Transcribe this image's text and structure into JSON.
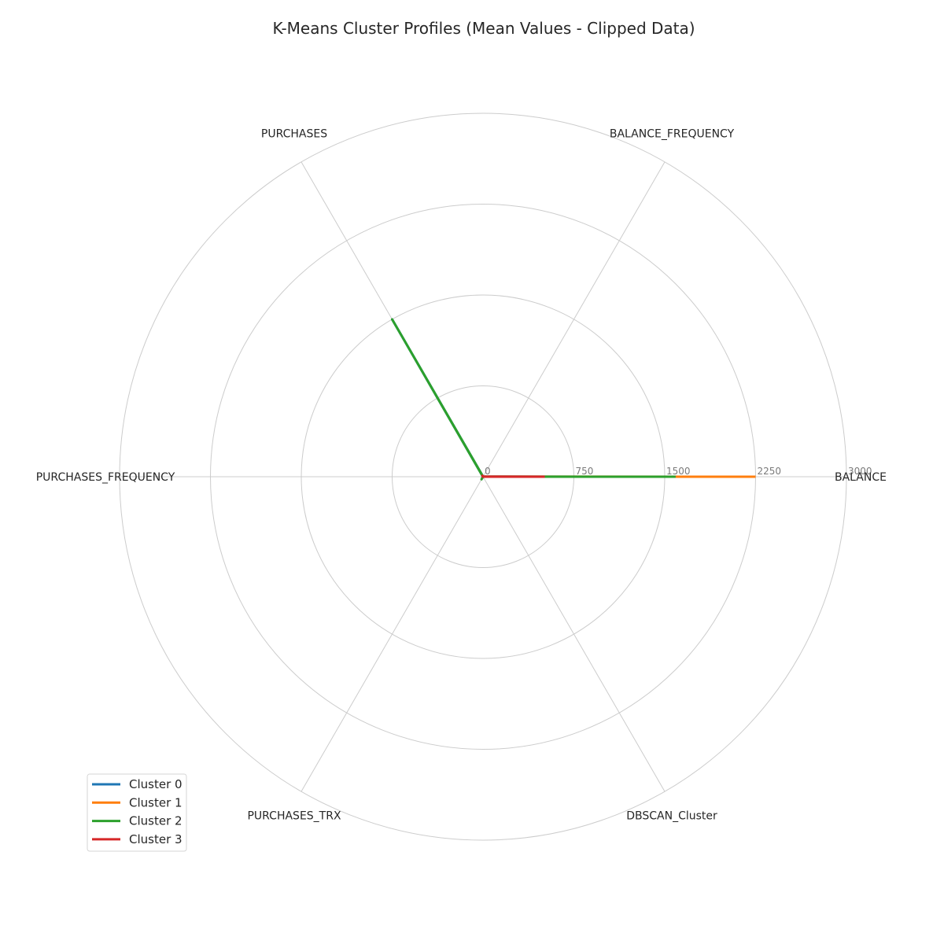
{
  "chart_data": {
    "type": "radar",
    "title": "K-Means Cluster Profiles (Mean Values - Clipped Data)",
    "categories": [
      "BALANCE",
      "BALANCE_FREQUENCY",
      "PURCHASES",
      "PURCHASES_FREQUENCY",
      "PURCHASES_TRX",
      "DBSCAN_Cluster"
    ],
    "rlim": [
      0,
      3000
    ],
    "rticks": [
      0,
      750,
      1500,
      2250,
      3000
    ],
    "rtick_labels": [
      "0",
      "750",
      "1500",
      "2250",
      "3000"
    ],
    "grid": true,
    "legend_position": "lower-left",
    "series": [
      {
        "name": "Cluster 0",
        "color": "#1f77b4",
        "values": [
          1560,
          1,
          1500,
          0.5,
          20,
          0
        ]
      },
      {
        "name": "Cluster 1",
        "color": "#ff7f0e",
        "values": [
          2250,
          1,
          10,
          0.1,
          2,
          0
        ]
      },
      {
        "name": "Cluster 2",
        "color": "#2ca02c",
        "values": [
          1590,
          1,
          1500,
          0.8,
          25,
          0
        ]
      },
      {
        "name": "Cluster 3",
        "color": "#d62728",
        "values": [
          510,
          1,
          10,
          0.1,
          1,
          0
        ]
      }
    ]
  }
}
